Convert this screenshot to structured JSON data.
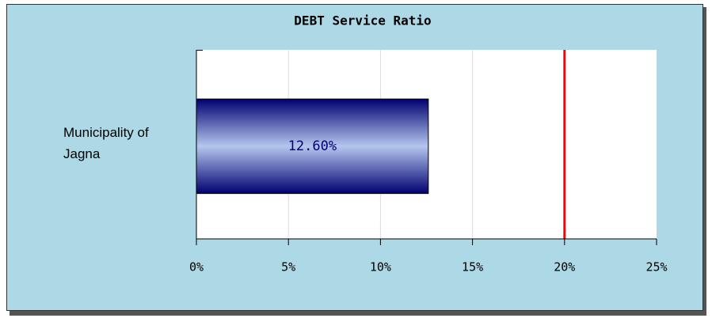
{
  "chart_data": {
    "type": "hbar",
    "title": "DEBT Service Ratio",
    "categories": [
      "Municipality of Jagna"
    ],
    "values": [
      12.6
    ],
    "value_labels": [
      "12.60%"
    ],
    "color": "#000070",
    "xlim": [
      0,
      25
    ],
    "xticks": [
      {
        "value": 0,
        "label": "0%"
      },
      {
        "value": 5,
        "label": "5%"
      },
      {
        "value": 10,
        "label": "10%"
      },
      {
        "value": 15,
        "label": "15%"
      },
      {
        "value": 20,
        "label": "20%"
      },
      {
        "value": 25,
        "label": "25%"
      }
    ],
    "grid": true,
    "reference_line": 20,
    "reference_color": "#ff0000"
  }
}
